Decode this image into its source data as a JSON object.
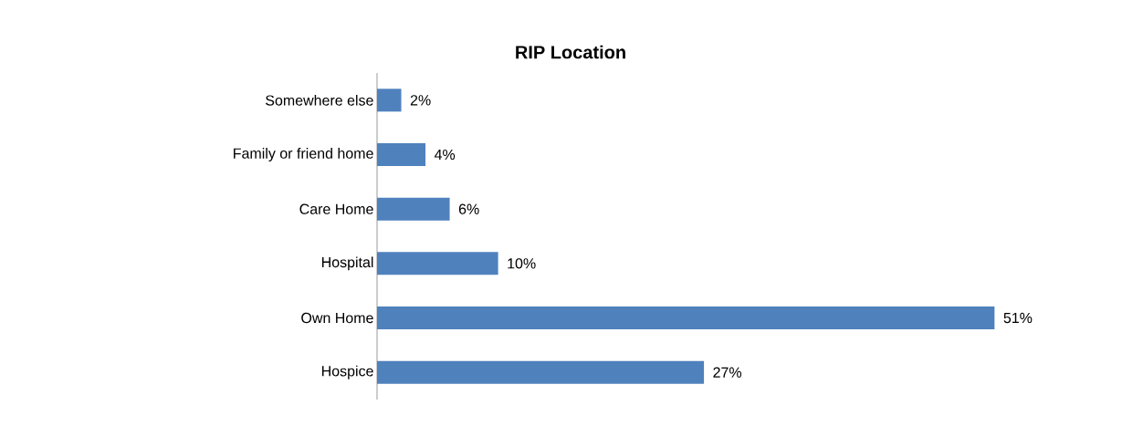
{
  "chart_data": {
    "type": "bar",
    "orientation": "horizontal",
    "title": "RIP Location",
    "categories": [
      "Somewhere else",
      "Family or friend home",
      "Care Home",
      "Hospital",
      "Own Home",
      "Hospice"
    ],
    "values": [
      2,
      4,
      6,
      10,
      51,
      27
    ],
    "value_labels": [
      "2%",
      "4%",
      "6%",
      "10%",
      "51%",
      "27%"
    ],
    "color": "#4f81bd"
  }
}
